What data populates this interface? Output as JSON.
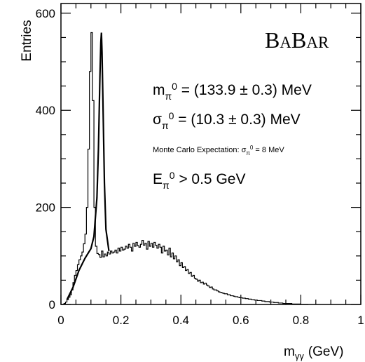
{
  "chart_data": {
    "type": "histogram",
    "xlabel": "m",
    "xlabel_sub": "γγ",
    "xlabel_unit": "(GeV)",
    "ylabel": "Entries",
    "xlim": [
      0,
      1
    ],
    "ylim": [
      0,
      620
    ],
    "xticks": [
      0,
      0.2,
      0.4,
      0.6,
      0.8,
      1
    ],
    "xtick_labels": [
      "0",
      "0.2",
      "0.4",
      "0.6",
      "0.8",
      "1"
    ],
    "yticks": [
      0,
      200,
      400,
      600
    ],
    "ytick_labels": [
      "0",
      "200",
      "400",
      "600"
    ],
    "histogram": {
      "bin_width": 0.005,
      "x_start": 0.0,
      "values": [
        0,
        0,
        2,
        5,
        10,
        15,
        20,
        30,
        45,
        60,
        70,
        82,
        92,
        100,
        108,
        125,
        145,
        200,
        320,
        480,
        560,
        420,
        200,
        120,
        105,
        103,
        97,
        110,
        98,
        104,
        100,
        108,
        104,
        110,
        106,
        108,
        112,
        106,
        116,
        110,
        118,
        112,
        114,
        120,
        116,
        124,
        118,
        110,
        126,
        120,
        128,
        121,
        118,
        124,
        132,
        122,
        126,
        114,
        130,
        120,
        126,
        118,
        128,
        122,
        116,
        124,
        118,
        106,
        120,
        110,
        112,
        102,
        116,
        98,
        106,
        94,
        100,
        88,
        92,
        80,
        86,
        76,
        78,
        70,
        72,
        64,
        66,
        58,
        60,
        54,
        52,
        48,
        50,
        45,
        46,
        42,
        44,
        40,
        38,
        35,
        36,
        32,
        30,
        30,
        28,
        26,
        25,
        24,
        23,
        22,
        22,
        20,
        20,
        18,
        18,
        17,
        16,
        16,
        15,
        14,
        14,
        13,
        13,
        12,
        12,
        11,
        11,
        10,
        10,
        9,
        9,
        8,
        8,
        8,
        7,
        7,
        6,
        6,
        6,
        5,
        5,
        5,
        4,
        4,
        4,
        3,
        3,
        3,
        2,
        2,
        2,
        2,
        2,
        2,
        1,
        1,
        1,
        1,
        1,
        1,
        0,
        0,
        0,
        0,
        0
      ]
    },
    "fit": {
      "x": [
        0.02,
        0.04,
        0.06,
        0.08,
        0.1,
        0.11,
        0.12,
        0.125,
        0.13,
        0.133,
        0.135,
        0.137,
        0.14,
        0.145,
        0.15,
        0.16
      ],
      "y": [
        10,
        35,
        70,
        95,
        115,
        140,
        220,
        320,
        470,
        540,
        560,
        520,
        420,
        250,
        155,
        110
      ]
    }
  },
  "logo": {
    "text": "BABAR",
    "parts": [
      {
        "t": "B",
        "big": true
      },
      {
        "t": "A",
        "big": false
      },
      {
        "t": "B",
        "big": true
      },
      {
        "t": "A",
        "big": false
      },
      {
        "t": "R",
        "big": false
      }
    ]
  },
  "annotations": {
    "mass": {
      "sym": "m",
      "sub": "π",
      "sup": "0",
      "rest": " = (133.9 ± 0.3) MeV"
    },
    "sigma": {
      "sym": "σ",
      "sub": "π",
      "sup": "0",
      "rest": " = (10.3 ± 0.3) MeV"
    },
    "mc": {
      "prefix": "Monte Carlo Expectation: ",
      "sym": "σ",
      "sub": "π",
      "sup": "0",
      "rest": " = 8 MeV"
    },
    "energy": {
      "sym": "E",
      "sub": "π",
      "sup": "0",
      "rest": " > 0.5 GeV"
    }
  }
}
